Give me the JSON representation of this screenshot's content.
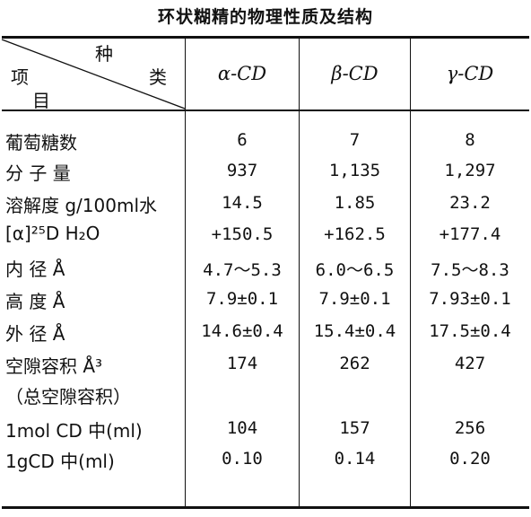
{
  "caption": "环状糊精的物理性质及结构",
  "header": {
    "corner_top": "种",
    "corner_left": "项",
    "corner_right": "类",
    "corner_bottom": "目",
    "columns": [
      "α-CD",
      "β-CD",
      "γ-CD"
    ]
  },
  "rows": [
    {
      "label": "葡萄糖数",
      "values": [
        "6",
        "7",
        "8"
      ]
    },
    {
      "label": "分 子 量",
      "values": [
        "937",
        "1,135",
        "1,297"
      ]
    },
    {
      "label": "溶解度 g/100ml水",
      "values": [
        "14.5",
        "1.85",
        "23.2"
      ]
    },
    {
      "label": "[α]²⁵D H₂O",
      "values": [
        "+150.5",
        "+162.5",
        "+177.4"
      ]
    },
    {
      "label": "内 径 Å",
      "values": [
        "4.7～5.3",
        "6.0～6.5",
        "7.5～8.3"
      ]
    },
    {
      "label": "高 度 Å",
      "values": [
        "7.9±0.1",
        "7.9±0.1",
        "7.93±0.1"
      ]
    },
    {
      "label": "外 径 Å",
      "values": [
        "14.6±0.4",
        "15.4±0.4",
        "17.5±0.4"
      ]
    },
    {
      "label": "空隙容积 Å³",
      "values": [
        "174",
        "262",
        "427"
      ]
    },
    {
      "label": "（总空隙容积）",
      "values": [
        "",
        "",
        ""
      ]
    },
    {
      "label": "1mol CD 中(ml)",
      "values": [
        "104",
        "157",
        "256"
      ]
    },
    {
      "label": "1gCD 中(ml)",
      "values": [
        "0.10",
        "0.14",
        "0.20"
      ]
    }
  ]
}
